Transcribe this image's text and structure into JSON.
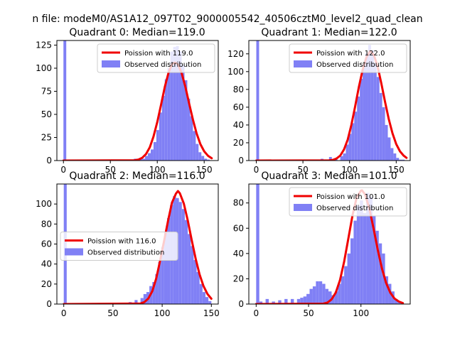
{
  "figure": {
    "suptitle": "n file: modeM0/AS1A12_097T02_9000005542_40506cztM0_level2_quad_clean"
  },
  "chart_data": [
    {
      "type": "bar",
      "title": "Quadrant 0: Median=119.0",
      "xlim": [
        -7,
        165
      ],
      "ylim": [
        0,
        130
      ],
      "xticks": [
        0,
        50,
        100,
        150
      ],
      "yticks": [
        0,
        25,
        50,
        75,
        100,
        125
      ],
      "legend_position": "upper right",
      "legend": {
        "line_label": "Poission with 119.0",
        "hist_label": "Observed distribution"
      },
      "hist_color": "#8080f5",
      "curve_color": "#f00000",
      "bin_width": 3,
      "hist": {
        "x": [
          0,
          63,
          69,
          75,
          78,
          81,
          84,
          87,
          90,
          93,
          96,
          99,
          102,
          105,
          108,
          111,
          114,
          117,
          120,
          123,
          126,
          129,
          132,
          135,
          138,
          141,
          144,
          147,
          150,
          153
        ],
        "values": [
          130,
          1,
          1,
          2,
          1,
          3,
          2,
          5,
          8,
          12,
          20,
          33,
          52,
          70,
          88,
          100,
          118,
          123,
          124,
          118,
          103,
          87,
          67,
          48,
          32,
          18,
          9,
          5,
          2,
          1
        ]
      },
      "poisson": {
        "x": [
          0,
          76,
          80,
          84,
          88,
          92,
          96,
          100,
          104,
          108,
          112,
          116,
          119,
          122,
          126,
          130,
          134,
          138,
          142,
          146,
          150,
          154,
          158
        ],
        "values": [
          0,
          0.3,
          1.1,
          3,
          7.1,
          14.3,
          25.9,
          41.6,
          60.3,
          79.7,
          95.3,
          104.8,
          106,
          104.2,
          94.8,
          79.7,
          61.6,
          44.2,
          29.2,
          17.7,
          10,
          5.2,
          2.5
        ]
      }
    },
    {
      "type": "bar",
      "title": "Quadrant 1: Median=122.0",
      "xlim": [
        -8,
        165
      ],
      "ylim": [
        0,
        135
      ],
      "xticks": [
        0,
        50,
        100,
        150
      ],
      "yticks": [
        0,
        20,
        40,
        60,
        80,
        100,
        120
      ],
      "legend_position": "upper right",
      "legend": {
        "line_label": "Poission with 122.0",
        "hist_label": "Observed distribution"
      },
      "hist_color": "#8080f5",
      "curve_color": "#f00000",
      "bin_width": 3,
      "hist": {
        "x": [
          0,
          45,
          63,
          69,
          78,
          84,
          90,
          93,
          96,
          99,
          102,
          105,
          108,
          111,
          114,
          117,
          120,
          123,
          126,
          129,
          132,
          135,
          138,
          141,
          144,
          147,
          150,
          153,
          156
        ],
        "values": [
          135,
          1,
          1,
          2,
          4,
          2,
          5,
          8,
          18,
          30,
          42,
          55,
          72,
          92,
          108,
          121,
          130,
          124,
          110,
          94,
          76,
          60,
          40,
          26,
          14,
          8,
          3,
          1,
          1
        ]
      },
      "poisson": {
        "x": [
          0,
          78,
          82,
          86,
          90,
          94,
          98,
          102,
          106,
          110,
          114,
          118,
          122,
          126,
          130,
          134,
          138,
          142,
          146,
          150,
          154,
          158,
          161
        ],
        "values": [
          0,
          0.2,
          0.7,
          2.2,
          5.6,
          12.3,
          23.6,
          40.3,
          61,
          82.8,
          102,
          116,
          123,
          118.9,
          106,
          87,
          66.1,
          46.7,
          30.5,
          18.5,
          10.4,
          5.5,
          3
        ]
      }
    },
    {
      "type": "bar",
      "title": "Quadrant 2: Median=116.0",
      "xlim": [
        -7,
        157
      ],
      "ylim": [
        0,
        120
      ],
      "xticks": [
        0,
        50,
        100,
        150
      ],
      "yticks": [
        0,
        20,
        40,
        60,
        80,
        100
      ],
      "legend_position": "center left",
      "legend": {
        "line_label": "Poission with 116.0",
        "hist_label": "Observed distribution"
      },
      "hist_color": "#8080f5",
      "curve_color": "#f00000",
      "bin_width": 3,
      "hist": {
        "x": [
          0,
          66,
          72,
          78,
          81,
          84,
          87,
          90,
          93,
          96,
          99,
          102,
          105,
          108,
          111,
          114,
          117,
          120,
          123,
          126,
          129,
          132,
          135,
          138,
          141,
          144,
          147
        ],
        "values": [
          120,
          2,
          4,
          6,
          10,
          12,
          18,
          22,
          30,
          42,
          57,
          72,
          86,
          99,
          108,
          106,
          102,
          95,
          84,
          70,
          58,
          44,
          32,
          20,
          12,
          7,
          3
        ]
      },
      "poisson": {
        "x": [
          0,
          78,
          82,
          86,
          90,
          94,
          98,
          102,
          106,
          110,
          114,
          116,
          118,
          122,
          126,
          130,
          134,
          138,
          142,
          146,
          150
        ],
        "values": [
          0,
          0.6,
          2,
          5.6,
          13,
          25.8,
          43.6,
          63.4,
          83.3,
          101.4,
          110.4,
          113,
          110.7,
          100.3,
          83.6,
          64.1,
          45.4,
          29.7,
          18,
          10.1,
          5.3
        ]
      }
    },
    {
      "type": "bar",
      "title": "Quadrant 3: Median=101.0",
      "xlim": [
        -7,
        147
      ],
      "ylim": [
        0,
        95
      ],
      "xticks": [
        0,
        50,
        100
      ],
      "yticks": [
        0,
        20,
        40,
        60,
        80
      ],
      "legend_position": "upper right",
      "legend": {
        "line_label": "Poission with 101.0",
        "hist_label": "Observed distribution"
      },
      "hist_color": "#8080f5",
      "curve_color": "#f00000",
      "bin_width": 3,
      "hist": {
        "x": [
          0,
          3,
          9,
          15,
          21,
          27,
          33,
          39,
          42,
          45,
          48,
          51,
          54,
          57,
          60,
          63,
          66,
          69,
          72,
          75,
          78,
          81,
          84,
          87,
          90,
          93,
          96,
          99,
          102,
          105,
          108,
          111,
          114,
          117,
          120,
          123,
          126,
          129,
          132,
          135
        ],
        "values": [
          95,
          2,
          4,
          2,
          3,
          4,
          4,
          4,
          5,
          6,
          8,
          12,
          14,
          18,
          18,
          16,
          12,
          10,
          7,
          10,
          16,
          22,
          30,
          40,
          52,
          66,
          78,
          82,
          72,
          88,
          85,
          70,
          58,
          48,
          40,
          22,
          16,
          10,
          4,
          2
        ]
      },
      "poisson": {
        "x": [
          0,
          64,
          68,
          72,
          76,
          80,
          84,
          88,
          92,
          96,
          100,
          101,
          104,
          108,
          112,
          116,
          120,
          124,
          128,
          132,
          136,
          140
        ],
        "values": [
          0,
          0.3,
          1.2,
          3.7,
          9.1,
          18.9,
          33.6,
          51.9,
          70.4,
          84.6,
          89.8,
          90,
          86.6,
          75.6,
          60,
          43.1,
          28.2,
          16.7,
          9,
          4.4,
          2,
          0.8
        ]
      }
    }
  ]
}
